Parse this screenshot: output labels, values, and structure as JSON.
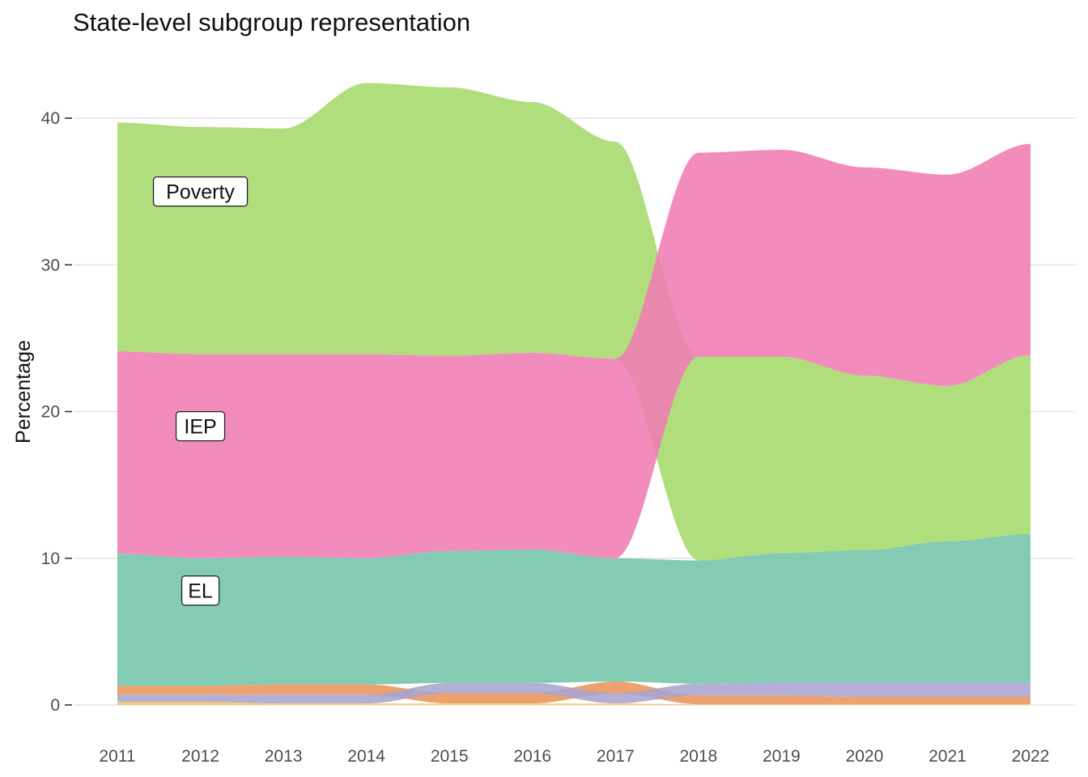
{
  "title": "State-level subgroup representation",
  "chart_data": {
    "type": "area",
    "title": "State-level subgroup representation",
    "xlabel": "",
    "ylabel": "Percentage",
    "x": [
      2011,
      2012,
      2013,
      2014,
      2015,
      2016,
      2017,
      2018,
      2019,
      2020,
      2021,
      2022
    ],
    "ylim": [
      -1,
      44
    ],
    "y_ticks": [
      0,
      10,
      20,
      30,
      40
    ],
    "grid": "horizontal",
    "legend": "none (direct labels)",
    "stacking": "ranked ribbons (bands ordered by size each year)",
    "series": [
      {
        "name": "Poverty",
        "color": "#a6d96a",
        "values": [
          15.6,
          15.5,
          15.4,
          18.5,
          18.3,
          17.1,
          14.8,
          13.9,
          13.4,
          11.9,
          10.6,
          12.2
        ]
      },
      {
        "name": "IEP",
        "color": "#f07cb4",
        "values": [
          13.8,
          13.9,
          13.8,
          13.9,
          13.3,
          13.4,
          13.6,
          13.9,
          14.1,
          14.2,
          14.4,
          14.4
        ]
      },
      {
        "name": "EL",
        "color": "#72c4a9",
        "values": [
          9.0,
          8.7,
          8.7,
          8.6,
          9.0,
          9.1,
          8.4,
          8.4,
          8.8,
          9.0,
          9.6,
          10.1
        ]
      },
      {
        "name": "",
        "color": "#e8955a",
        "values": [
          0.6,
          0.6,
          0.7,
          0.7,
          0.7,
          0.7,
          0.8,
          0.6,
          0.6,
          0.5,
          0.5,
          0.5
        ]
      },
      {
        "name": "",
        "color": "#a8a4cf",
        "values": [
          0.5,
          0.5,
          0.6,
          0.6,
          0.7,
          0.7,
          0.7,
          0.8,
          0.9,
          1.0,
          1.0,
          1.0
        ]
      },
      {
        "name": "",
        "color": "#f2c760",
        "values": [
          0.2,
          0.2,
          0.1,
          0.1,
          0.1,
          0.1,
          0.1,
          0.05,
          0.05,
          0.05,
          0.05,
          0.05
        ]
      }
    ],
    "labels": [
      {
        "series": "Poverty",
        "text": "Poverty",
        "x": 2012,
        "y": 35
      },
      {
        "series": "IEP",
        "text": "IEP",
        "x": 2012,
        "y": 19
      },
      {
        "series": "EL",
        "text": "EL",
        "x": 2012,
        "y": 7.8
      }
    ]
  }
}
